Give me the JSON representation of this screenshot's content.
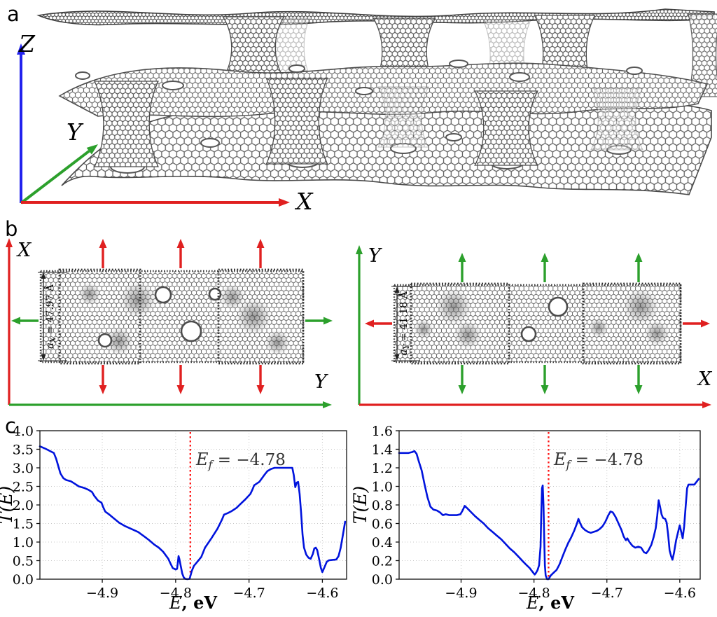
{
  "panels": {
    "a": {
      "label": "a",
      "axis_z": "Z",
      "axis_y": "Y",
      "axis_x": "X"
    },
    "b": {
      "label": "b",
      "left": {
        "vaxis": "X",
        "haxis": "Y",
        "dim_sym": "a",
        "dim_sub": "X",
        "dim_rest": " = 47.97 Å"
      },
      "right": {
        "vaxis": "Y",
        "haxis": "X",
        "dim_sym": "a",
        "dim_sub": "Y",
        "dim_rest": " = 41.18 Å"
      }
    },
    "c": {
      "label": "c"
    }
  },
  "colors": {
    "axis_red": "#e02020",
    "axis_green": "#2ca02c",
    "axis_blue": "#2222ee",
    "curve_blue": "#0013dd",
    "fermi_red": "#ff1212",
    "mesh_gray": "#6b6b6b",
    "grid_gray": "#c8c8c8"
  },
  "chart_data": [
    {
      "type": "line",
      "title": "",
      "ylabel": "T(E)",
      "xlabel_e": "E",
      "xlabel_rest": ", eV",
      "xlim": [
        -4.985,
        -4.567
      ],
      "ylim": [
        0,
        4
      ],
      "xticks": [
        -4.9,
        -4.8,
        -4.7,
        -4.6
      ],
      "yticks": [
        0,
        0.5,
        1.0,
        1.5,
        2.0,
        2.5,
        3.0,
        3.5,
        4.0
      ],
      "grid": true,
      "legend": "none",
      "fermi": {
        "x": -4.78
      },
      "annotation": {
        "sym": "E",
        "sub": "f",
        "rest": " = −4.78"
      },
      "series": [
        {
          "name": "T(E)",
          "color": "#0013dd",
          "points": [
            [
              -4.985,
              3.58
            ],
            [
              -4.978,
              3.52
            ],
            [
              -4.972,
              3.46
            ],
            [
              -4.966,
              3.4
            ],
            [
              -4.963,
              3.25
            ],
            [
              -4.96,
              3.05
            ],
            [
              -4.957,
              2.85
            ],
            [
              -4.953,
              2.72
            ],
            [
              -4.949,
              2.67
            ],
            [
              -4.943,
              2.64
            ],
            [
              -4.938,
              2.58
            ],
            [
              -4.932,
              2.5
            ],
            [
              -4.925,
              2.46
            ],
            [
              -4.919,
              2.41
            ],
            [
              -4.914,
              2.35
            ],
            [
              -4.911,
              2.25
            ],
            [
              -4.906,
              2.12
            ],
            [
              -4.901,
              2.06
            ],
            [
              -4.899,
              1.95
            ],
            [
              -4.896,
              1.82
            ],
            [
              -4.891,
              1.75
            ],
            [
              -4.885,
              1.65
            ],
            [
              -4.877,
              1.52
            ],
            [
              -4.869,
              1.43
            ],
            [
              -4.861,
              1.36
            ],
            [
              -4.851,
              1.27
            ],
            [
              -4.842,
              1.14
            ],
            [
              -4.836,
              1.05
            ],
            [
              -4.829,
              0.93
            ],
            [
              -4.823,
              0.85
            ],
            [
              -4.817,
              0.74
            ],
            [
              -4.81,
              0.55
            ],
            [
              -4.807,
              0.42
            ],
            [
              -4.804,
              0.3
            ],
            [
              -4.8,
              0.26
            ],
            [
              -4.798,
              0.28
            ],
            [
              -4.797,
              0.45
            ],
            [
              -4.796,
              0.62
            ],
            [
              -4.795,
              0.55
            ],
            [
              -4.793,
              0.35
            ],
            [
              -4.791,
              0.15
            ],
            [
              -4.789,
              0.05
            ],
            [
              -4.787,
              0.01
            ],
            [
              -4.784,
              0.0
            ],
            [
              -4.781,
              0.01
            ],
            [
              -4.778,
              0.22
            ],
            [
              -4.775,
              0.36
            ],
            [
              -4.77,
              0.48
            ],
            [
              -4.765,
              0.6
            ],
            [
              -4.76,
              0.85
            ],
            [
              -4.751,
              1.11
            ],
            [
              -4.743,
              1.36
            ],
            [
              -4.737,
              1.6
            ],
            [
              -4.734,
              1.74
            ],
            [
              -4.729,
              1.78
            ],
            [
              -4.724,
              1.83
            ],
            [
              -4.717,
              1.92
            ],
            [
              -4.712,
              2.02
            ],
            [
              -4.705,
              2.15
            ],
            [
              -4.698,
              2.3
            ],
            [
              -4.695,
              2.43
            ],
            [
              -4.693,
              2.53
            ],
            [
              -4.686,
              2.62
            ],
            [
              -4.679,
              2.81
            ],
            [
              -4.675,
              2.91
            ],
            [
              -4.67,
              2.97
            ],
            [
              -4.665,
              3.0
            ],
            [
              -4.655,
              3.0
            ],
            [
              -4.645,
              3.0
            ],
            [
              -4.641,
              3.0
            ],
            [
              -4.639,
              2.8
            ],
            [
              -4.637,
              2.48
            ],
            [
              -4.635,
              2.6
            ],
            [
              -4.633,
              2.62
            ],
            [
              -4.631,
              2.3
            ],
            [
              -4.629,
              1.8
            ],
            [
              -4.627,
              1.2
            ],
            [
              -4.625,
              0.85
            ],
            [
              -4.622,
              0.66
            ],
            [
              -4.619,
              0.58
            ],
            [
              -4.616,
              0.55
            ],
            [
              -4.613,
              0.68
            ],
            [
              -4.611,
              0.83
            ],
            [
              -4.609,
              0.85
            ],
            [
              -4.607,
              0.78
            ],
            [
              -4.604,
              0.5
            ],
            [
              -4.602,
              0.3
            ],
            [
              -4.6,
              0.19
            ],
            [
              -4.597,
              0.33
            ],
            [
              -4.594,
              0.47
            ],
            [
              -4.591,
              0.51
            ],
            [
              -4.586,
              0.52
            ],
            [
              -4.581,
              0.53
            ],
            [
              -4.578,
              0.62
            ],
            [
              -4.575,
              0.85
            ],
            [
              -4.572,
              1.2
            ],
            [
              -4.569,
              1.55
            ]
          ]
        }
      ]
    },
    {
      "type": "line",
      "title": "",
      "ylabel": "T(E)",
      "xlabel_e": "E",
      "xlabel_rest": ", eV",
      "xlim": [
        -4.985,
        -4.572
      ],
      "ylim": [
        0,
        1.6
      ],
      "xticks": [
        -4.9,
        -4.8,
        -4.7,
        -4.6
      ],
      "yticks": [
        0,
        0.2,
        0.4,
        0.6,
        0.8,
        1.0,
        1.2,
        1.4,
        1.6
      ],
      "grid": true,
      "legend": "none",
      "fermi": {
        "x": -4.78
      },
      "annotation": {
        "sym": "E",
        "sub": "f",
        "rest": " = −4.78"
      },
      "series": [
        {
          "name": "T(E)",
          "color": "#0013dd",
          "points": [
            [
              -4.985,
              1.36
            ],
            [
              -4.978,
              1.36
            ],
            [
              -4.972,
              1.36
            ],
            [
              -4.967,
              1.37
            ],
            [
              -4.964,
              1.38
            ],
            [
              -4.961,
              1.35
            ],
            [
              -4.958,
              1.27
            ],
            [
              -4.954,
              1.17
            ],
            [
              -4.95,
              1.02
            ],
            [
              -4.946,
              0.88
            ],
            [
              -4.942,
              0.78
            ],
            [
              -4.938,
              0.75
            ],
            [
              -4.933,
              0.74
            ],
            [
              -4.929,
              0.72
            ],
            [
              -4.925,
              0.69
            ],
            [
              -4.921,
              0.7
            ],
            [
              -4.916,
              0.69
            ],
            [
              -4.911,
              0.69
            ],
            [
              -4.906,
              0.69
            ],
            [
              -4.901,
              0.7
            ],
            [
              -4.898,
              0.74
            ],
            [
              -4.895,
              0.79
            ],
            [
              -4.891,
              0.76
            ],
            [
              -4.886,
              0.72
            ],
            [
              -4.881,
              0.68
            ],
            [
              -4.875,
              0.64
            ],
            [
              -4.869,
              0.6
            ],
            [
              -4.863,
              0.55
            ],
            [
              -4.857,
              0.51
            ],
            [
              -4.851,
              0.47
            ],
            [
              -4.845,
              0.43
            ],
            [
              -4.839,
              0.38
            ],
            [
              -4.833,
              0.33
            ],
            [
              -4.827,
              0.29
            ],
            [
              -4.821,
              0.24
            ],
            [
              -4.815,
              0.19
            ],
            [
              -4.81,
              0.15
            ],
            [
              -4.806,
              0.12
            ],
            [
              -4.802,
              0.08
            ],
            [
              -4.799,
              0.05
            ],
            [
              -4.797,
              0.07
            ],
            [
              -4.795,
              0.1
            ],
            [
              -4.793,
              0.15
            ],
            [
              -4.791,
              0.35
            ],
            [
              -4.79,
              0.7
            ],
            [
              -4.789,
              0.98
            ],
            [
              -4.788,
              1.01
            ],
            [
              -4.787,
              0.8
            ],
            [
              -4.786,
              0.45
            ],
            [
              -4.785,
              0.15
            ],
            [
              -4.784,
              0.04
            ],
            [
              -4.782,
              0.0
            ],
            [
              -4.78,
              0.0
            ],
            [
              -4.777,
              0.04
            ],
            [
              -4.773,
              0.07
            ],
            [
              -4.769,
              0.1
            ],
            [
              -4.765,
              0.16
            ],
            [
              -4.761,
              0.24
            ],
            [
              -4.757,
              0.32
            ],
            [
              -4.753,
              0.39
            ],
            [
              -4.749,
              0.45
            ],
            [
              -4.745,
              0.52
            ],
            [
              -4.741,
              0.6
            ],
            [
              -4.739,
              0.65
            ],
            [
              -4.737,
              0.61
            ],
            [
              -4.734,
              0.56
            ],
            [
              -4.73,
              0.53
            ],
            [
              -4.726,
              0.51
            ],
            [
              -4.722,
              0.5
            ],
            [
              -4.718,
              0.51
            ],
            [
              -4.714,
              0.52
            ],
            [
              -4.71,
              0.54
            ],
            [
              -4.706,
              0.57
            ],
            [
              -4.702,
              0.62
            ],
            [
              -4.698,
              0.69
            ],
            [
              -4.695,
              0.73
            ],
            [
              -4.692,
              0.72
            ],
            [
              -4.688,
              0.67
            ],
            [
              -4.684,
              0.6
            ],
            [
              -4.68,
              0.53
            ],
            [
              -4.677,
              0.46
            ],
            [
              -4.674,
              0.42
            ],
            [
              -4.672,
              0.44
            ],
            [
              -4.669,
              0.4
            ],
            [
              -4.665,
              0.36
            ],
            [
              -4.661,
              0.34
            ],
            [
              -4.657,
              0.35
            ],
            [
              -4.653,
              0.34
            ],
            [
              -4.649,
              0.29
            ],
            [
              -4.646,
              0.28
            ],
            [
              -4.643,
              0.31
            ],
            [
              -4.639,
              0.37
            ],
            [
              -4.636,
              0.45
            ],
            [
              -4.633,
              0.55
            ],
            [
              -4.631,
              0.68
            ],
            [
              -4.629,
              0.85
            ],
            [
              -4.627,
              0.78
            ],
            [
              -4.625,
              0.7
            ],
            [
              -4.623,
              0.66
            ],
            [
              -4.62,
              0.65
            ],
            [
              -4.618,
              0.61
            ],
            [
              -4.616,
              0.48
            ],
            [
              -4.614,
              0.31
            ],
            [
              -4.612,
              0.25
            ],
            [
              -4.61,
              0.21
            ],
            [
              -4.608,
              0.28
            ],
            [
              -4.605,
              0.42
            ],
            [
              -4.602,
              0.52
            ],
            [
              -4.6,
              0.58
            ],
            [
              -4.598,
              0.51
            ],
            [
              -4.596,
              0.44
            ],
            [
              -4.594,
              0.57
            ],
            [
              -4.592,
              0.78
            ],
            [
              -4.59,
              0.98
            ],
            [
              -4.588,
              1.02
            ],
            [
              -4.584,
              1.02
            ],
            [
              -4.58,
              1.02
            ],
            [
              -4.577,
              1.05
            ],
            [
              -4.574,
              1.08
            ]
          ]
        }
      ]
    }
  ]
}
